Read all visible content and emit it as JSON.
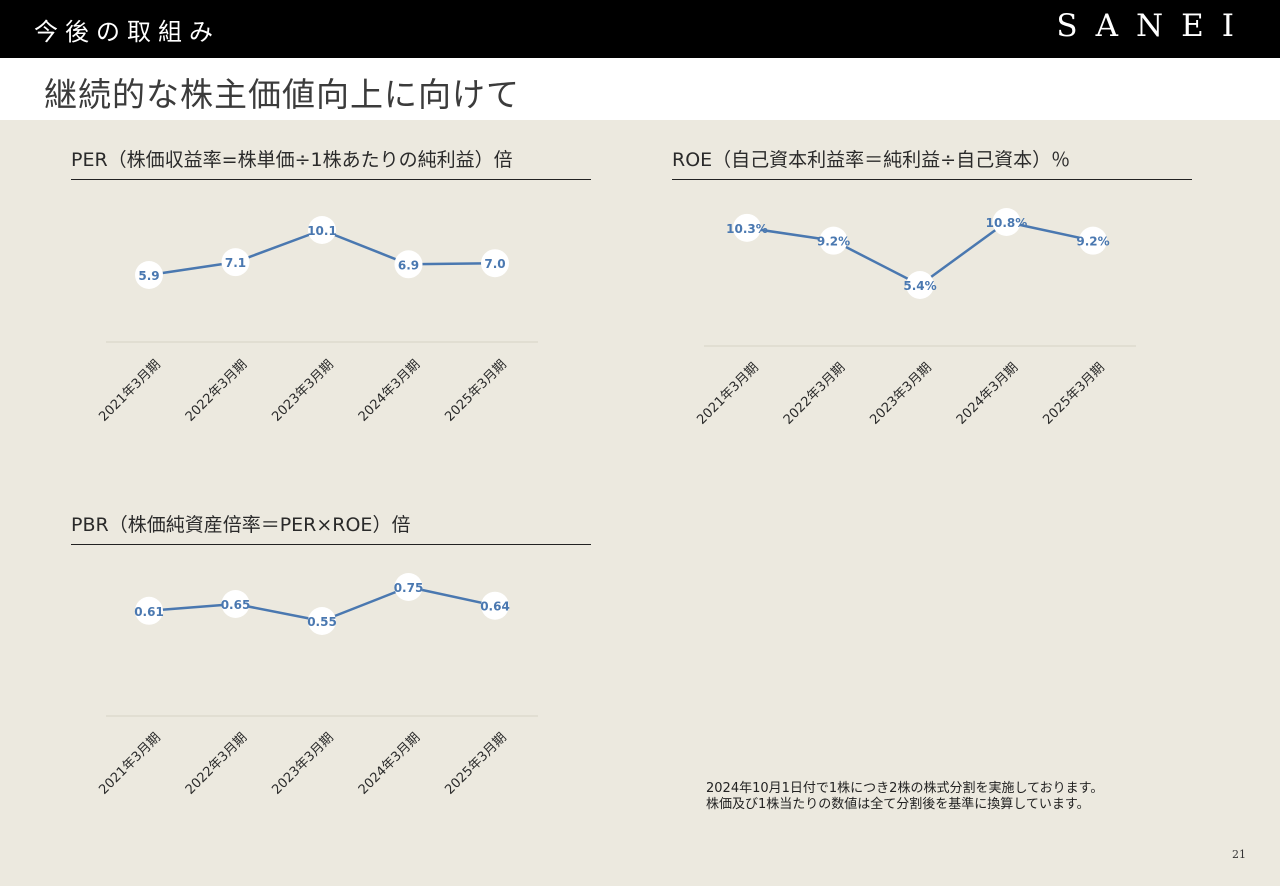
{
  "header": {
    "section_title": "今後の取組み",
    "brand": "SANEI",
    "page_title": "継続的な株主価値向上に向けて"
  },
  "charts": {
    "per": {
      "heading": "PER（株価収益率=株単価÷1株あたりの純利益）倍"
    },
    "roe": {
      "heading": "ROE（自己資本利益率＝純利益÷自己資本）％"
    },
    "pbr": {
      "heading": "PBR（株価純資産倍率＝PER×ROE）倍"
    }
  },
  "chart_data": [
    {
      "id": "per",
      "type": "line",
      "title": "PER（株価収益率=株単価÷1株あたりの純利益）倍",
      "categories": [
        "2021年3月期",
        "2022年3月期",
        "2023年3月期",
        "2024年3月期",
        "2025年3月期"
      ],
      "values": [
        5.9,
        7.1,
        10.1,
        6.9,
        7.0
      ],
      "labels": [
        "5.9",
        "7.1",
        "10.1",
        "6.9",
        "7.0"
      ],
      "color": "#4a78b0",
      "legend": "none",
      "grid": false
    },
    {
      "id": "roe",
      "type": "line",
      "title": "ROE（自己資本利益率＝純利益÷自己資本）％",
      "categories": [
        "2021年3月期",
        "2022年3月期",
        "2023年3月期",
        "2024年3月期",
        "2025年3月期"
      ],
      "values": [
        10.3,
        9.2,
        5.4,
        10.8,
        9.2
      ],
      "labels": [
        "10.3%",
        "9.2%",
        "5.4%",
        "10.8%",
        "9.2%"
      ],
      "color": "#4a78b0",
      "legend": "none",
      "grid": false
    },
    {
      "id": "pbr",
      "type": "line",
      "title": "PBR（株価純資産倍率＝PER×ROE）倍",
      "categories": [
        "2021年3月期",
        "2022年3月期",
        "2023年3月期",
        "2024年3月期",
        "2025年3月期"
      ],
      "values": [
        0.61,
        0.65,
        0.55,
        0.75,
        0.64
      ],
      "labels": [
        "0.61",
        "0.65",
        "0.55",
        "0.75",
        "0.64"
      ],
      "color": "#4a78b0",
      "legend": "none",
      "grid": false
    }
  ],
  "note": {
    "line1": "2024年10月1日付で1株につき2株の株式分割を実施しております。",
    "line2": "株価及び1株当たりの数値は全て分割後を基準に換算しています。"
  },
  "page_number": "21"
}
